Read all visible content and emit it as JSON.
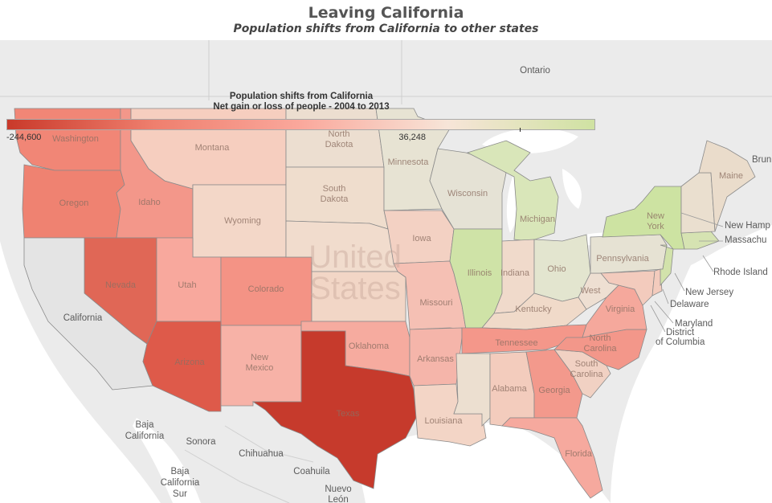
{
  "header": {
    "title": "Leaving California",
    "subtitle": "Population shifts from California to other states"
  },
  "legend": {
    "title_line1": "Population shifts from California",
    "title_line2": "Net gain or loss of people - 2004 to 2013",
    "min_label": "-244,600",
    "max_label": "36,248",
    "colors": [
      "#c9392a",
      "#ef7f6e",
      "#faa89c",
      "#f7e5d8",
      "#cfe2a2"
    ]
  },
  "map": {
    "country_label_1": "United",
    "country_label_2": "States",
    "states": {
      "washington": "Washington",
      "oregon": "Oregon",
      "idaho": "Idaho",
      "montana": "Montana",
      "wyoming": "Wyoming",
      "nevada": "Nevada",
      "utah": "Utah",
      "colorado": "Colorado",
      "arizona": "Arizona",
      "new_mexico_1": "New",
      "new_mexico_2": "Mexico",
      "north_dakota_1": "North",
      "north_dakota_2": "Dakota",
      "south_dakota_1": "South",
      "south_dakota_2": "Dakota",
      "nebraska": "",
      "kansas": "",
      "oklahoma": "Oklahoma",
      "texas": "Texas",
      "minnesota": "Minnesota",
      "iowa": "Iowa",
      "missouri": "Missouri",
      "arkansas": "Arkansas",
      "louisiana": "Louisiana",
      "wisconsin": "Wisconsin",
      "illinois": "Illinois",
      "michigan": "Michigan",
      "indiana": "Indiana",
      "ohio": "Ohio",
      "kentucky": "Kentucky",
      "tennessee": "Tennessee",
      "mississippi": "",
      "alabama": "Alabama",
      "georgia": "Georgia",
      "florida": "Florida",
      "south_carolina_1": "South",
      "south_carolina_2": "Carolina",
      "north_carolina_1": "North",
      "north_carolina_2": "Carolina",
      "virginia": "Virginia",
      "west_virginia": "West",
      "pennsylvania": "Pennsylvania",
      "new_york_1": "New",
      "new_york_2": "York",
      "maine": "Maine"
    },
    "places": {
      "ontario": "Ontario",
      "california": "California",
      "baja_california_1": "Baja",
      "baja_california_2": "California",
      "sonora": "Sonora",
      "chihuahua": "Chihuahua",
      "coahuila": "Coahuila",
      "baja_california_sur_1": "Baja",
      "baja_california_sur_2": "California",
      "baja_california_sur_3": "Sur",
      "nuevo_leon_1": "Nuevo",
      "nuevo_leon_2": "León",
      "new_hamp": "New Hamp",
      "massachu": "Massachu",
      "rhode_island": "Rhode Island",
      "new_jersey": "New Jersey",
      "delaware": "Delaware",
      "maryland": "Maryland",
      "district_1": "District",
      "district_2": "of Columbia",
      "brun": "Brun"
    },
    "fill_colors": {
      "texas": "#c63a2c",
      "arizona": "#de5a4a",
      "nevada": "#e06756",
      "washington": "#f18676",
      "oregon": "#ef8271",
      "idaho": "#f3978a",
      "colorado": "#f49385",
      "utah": "#f8a89d",
      "new_mexico": "#f7b2a7",
      "oklahoma": "#f6ab9f",
      "tennessee": "#f4978a",
      "north_carolina": "#f3978a",
      "georgia": "#f3998c",
      "florida": "#f6a99e",
      "virginia": "#f5a89c",
      "arkansas": "#f5b5aa",
      "missouri": "#f5c0b4",
      "montana": "#f6cebf",
      "wyoming": "#f3d7c8",
      "alabama": "#f3ccbd",
      "louisiana": "#f3d5c6",
      "south_carolina": "#f1d1c3",
      "iowa": "#f3d1c3",
      "kansas": "#f2d6c6",
      "nebraska": "#f1dccd",
      "south_dakota": "#efddcd",
      "north_dakota": "#ecded0",
      "kentucky": "#f0dac9",
      "indiana": "#f0dacb",
      "mississippi": "#ecdfd0",
      "west_virginia": "#eedfd2",
      "maryland": "#f3cbbd",
      "delaware": "#f3cbbd",
      "new_england": "#eadfcf",
      "maine": "#eadccb",
      "minnesota": "#e7e3d3",
      "wisconsin": "#e5e2d5",
      "pennsylvania": "#e6e2d3",
      "ohio": "#e3e5cf",
      "michigan": "#d9e6b9",
      "illinois": "#cfe3a7",
      "new_york": "#cde3a2",
      "new_jersey": "#d2e2ab",
      "massachusetts": "#d6e3b2"
    }
  }
}
